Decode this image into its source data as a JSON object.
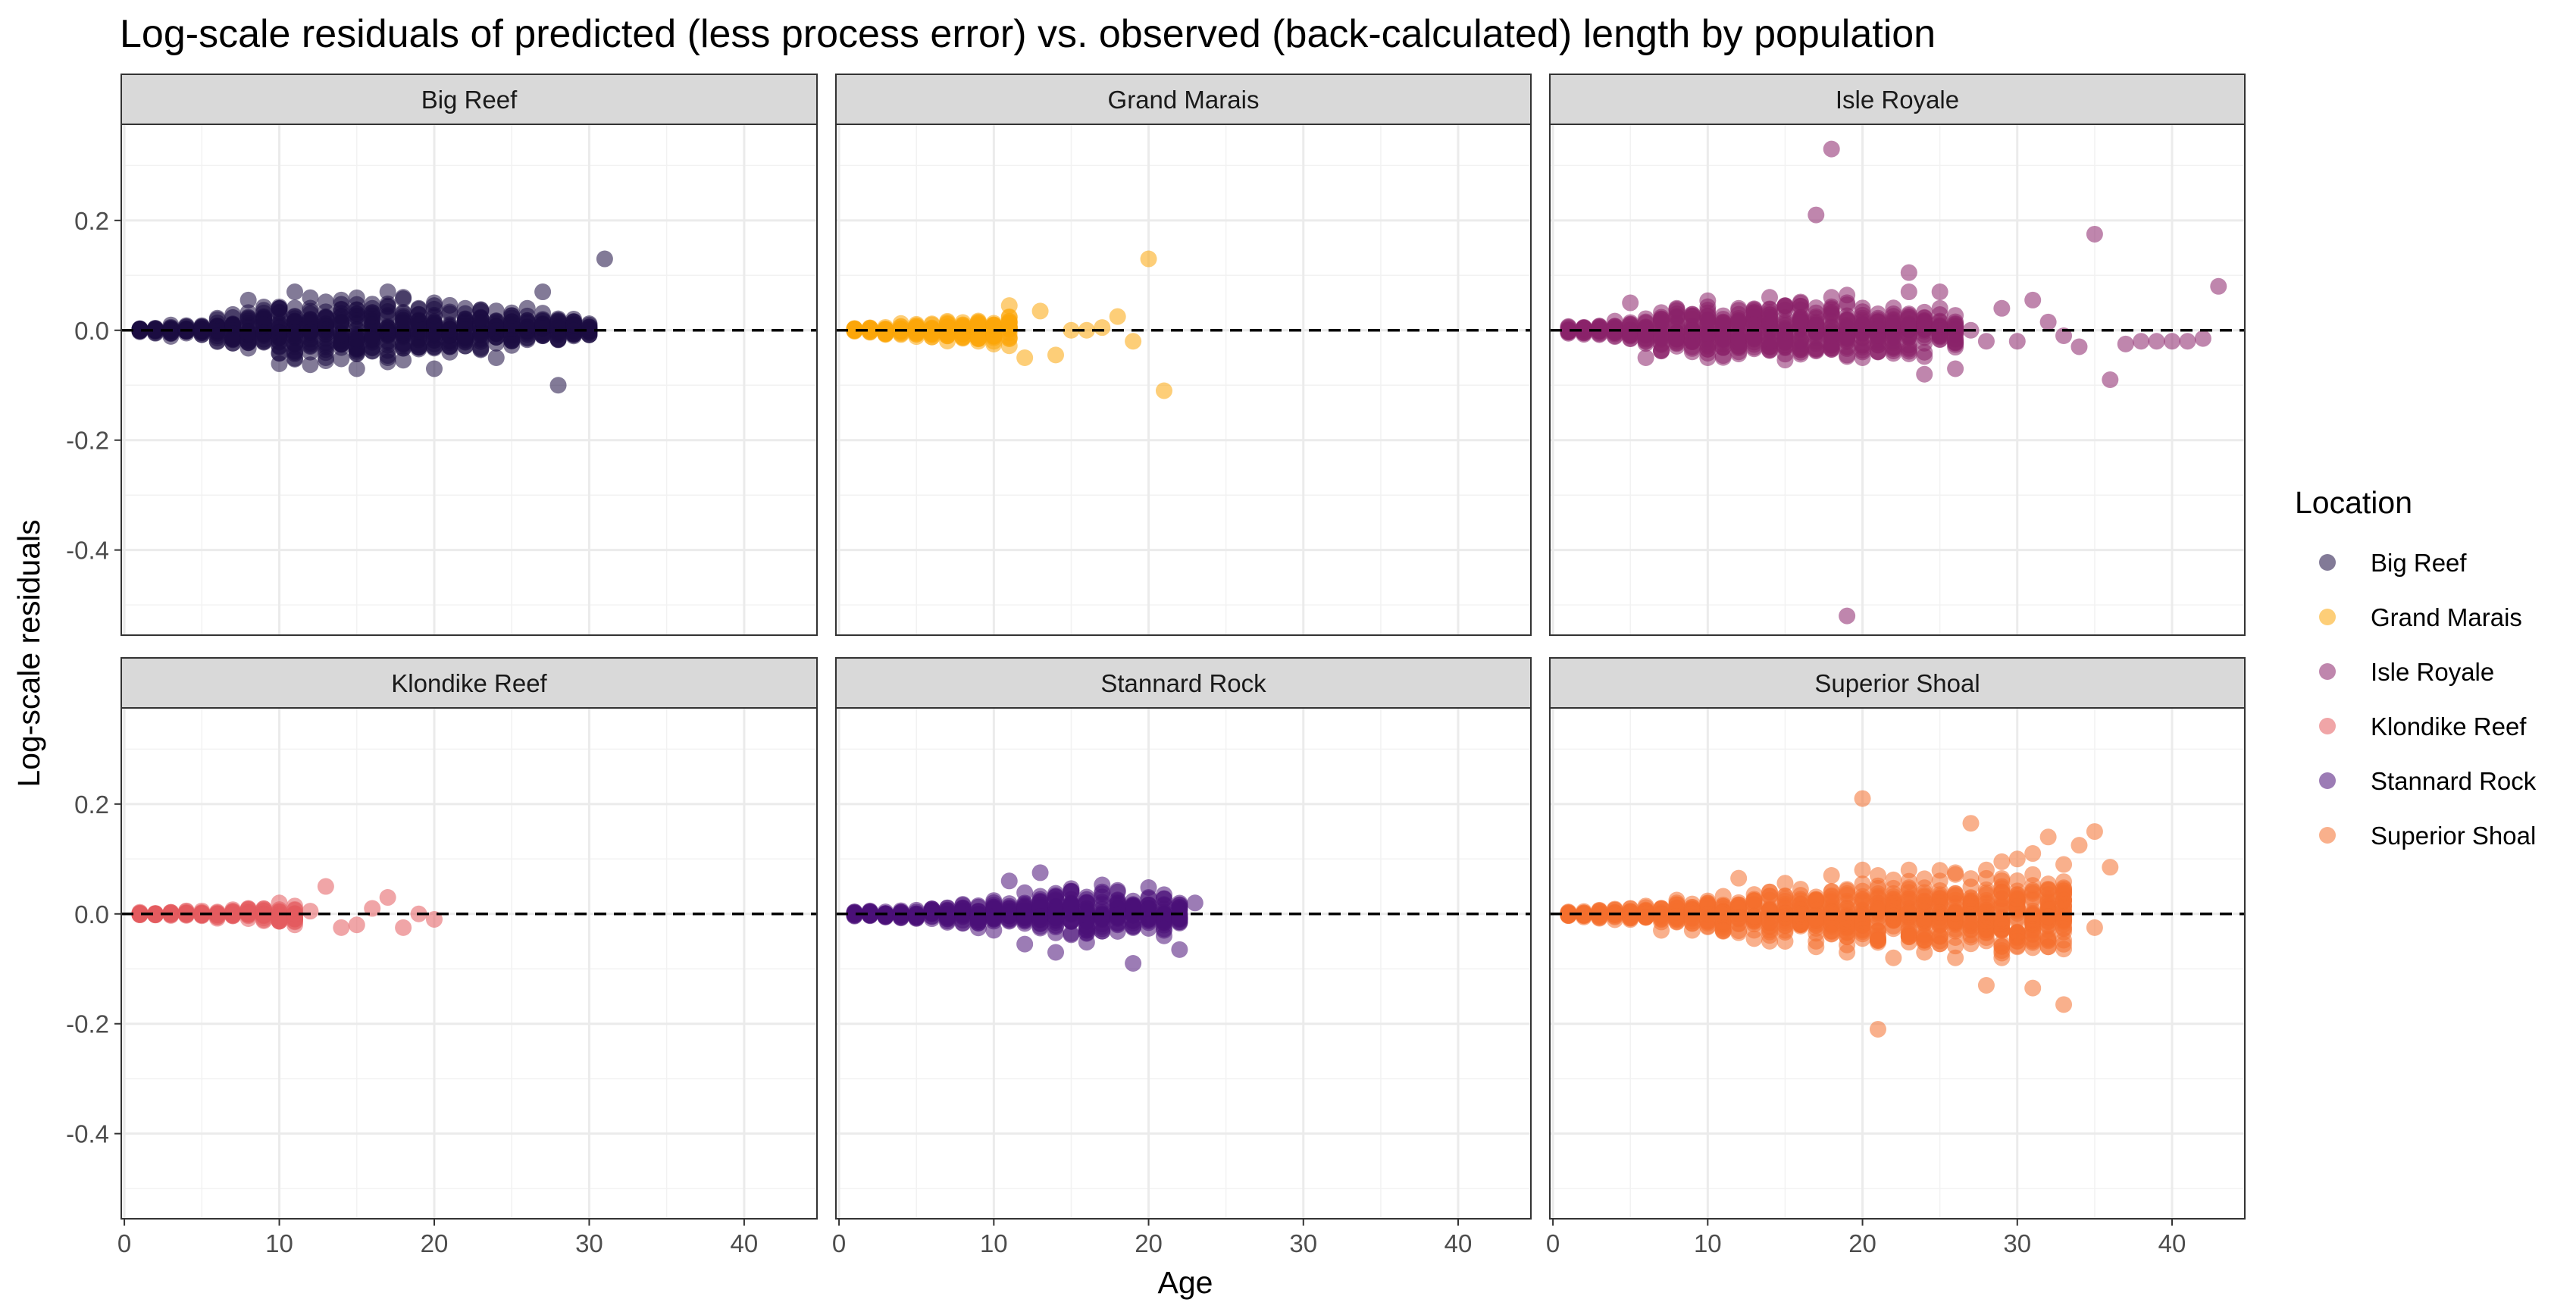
{
  "chart_data": {
    "type": "scatter",
    "title": "Log-scale residuals of predicted (less process error) vs. observed (back-calculated) length by population",
    "xlabel": "Age",
    "ylabel": "Log-scale residuals",
    "xlim": [
      -0.2,
      44.7
    ],
    "ylim": [
      -0.555,
      0.375
    ],
    "x_ticks": [
      0,
      10,
      20,
      30,
      40
    ],
    "x_tick_labels": [
      "0",
      "10",
      "20",
      "30",
      "40"
    ],
    "y_ticks": [
      -0.4,
      -0.2,
      0.0,
      0.2
    ],
    "y_tick_labels": [
      "-0.4",
      "-0.2",
      "0.0",
      "0.2"
    ],
    "reference_line": {
      "y": 0,
      "style": "dashed"
    },
    "grid": true,
    "legend": {
      "title": "Location",
      "position": "right",
      "entries": [
        "Big Reef",
        "Grand Marais",
        "Isle Royale",
        "Klondike Reef",
        "Stannard Rock",
        "Superior Shoal"
      ]
    },
    "panels": [
      {
        "name": "Big Reef",
        "color": "#1B0C41",
        "points": [
          [
            1,
            0
          ],
          [
            2,
            0
          ],
          [
            3,
            0
          ],
          [
            4,
            0
          ],
          [
            5,
            0
          ],
          [
            6,
            0
          ],
          [
            7,
            0.01
          ],
          [
            8,
            0.055
          ],
          [
            9,
            -0.02
          ],
          [
            10,
            0.04
          ],
          [
            11,
            0.07
          ],
          [
            11,
            -0.04
          ],
          [
            12,
            0.03
          ],
          [
            13,
            -0.05
          ],
          [
            14,
            0.055
          ],
          [
            15,
            -0.07
          ],
          [
            16,
            0.04
          ],
          [
            17,
            0.07
          ],
          [
            17,
            -0.05
          ],
          [
            18,
            0.06
          ],
          [
            19,
            0.04
          ],
          [
            20,
            0.05
          ],
          [
            20,
            -0.07
          ],
          [
            21,
            -0.04
          ],
          [
            22,
            0.04
          ],
          [
            23,
            0.02
          ],
          [
            24,
            -0.05
          ],
          [
            25,
            0.01
          ],
          [
            26,
            0.04
          ],
          [
            27,
            0.07
          ],
          [
            28,
            -0.1
          ],
          [
            29,
            0.01
          ],
          [
            30,
            0.005
          ],
          [
            31,
            0.13
          ]
        ],
        "band": {
          "x_min": 1,
          "x_max": 30,
          "spread": [
            [
              1,
              0.004
            ],
            [
              5,
              0.01
            ],
            [
              10,
              0.04
            ],
            [
              15,
              0.04
            ],
            [
              20,
              0.035
            ],
            [
              25,
              0.025
            ],
            [
              30,
              0.015
            ]
          ]
        }
      },
      {
        "name": "Grand Marais",
        "color": "#FCA50A",
        "points": [
          [
            1,
            0
          ],
          [
            2,
            0
          ],
          [
            3,
            0
          ],
          [
            4,
            0
          ],
          [
            5,
            0.005
          ],
          [
            6,
            0.01
          ],
          [
            7,
            -0.01
          ],
          [
            8,
            0.01
          ],
          [
            9,
            -0.02
          ],
          [
            10,
            -0.02
          ],
          [
            11,
            0.045
          ],
          [
            12,
            -0.05
          ],
          [
            13,
            0.035
          ],
          [
            14,
            -0.045
          ],
          [
            15,
            0
          ],
          [
            16,
            0
          ],
          [
            17,
            0.005
          ],
          [
            18,
            0.025
          ],
          [
            19,
            -0.02
          ],
          [
            20,
            0.13
          ],
          [
            21,
            -0.11
          ]
        ],
        "band": {
          "x_min": 1,
          "x_max": 11,
          "spread": [
            [
              1,
              0.003
            ],
            [
              5,
              0.01
            ],
            [
              10,
              0.02
            ],
            [
              11,
              0.02
            ]
          ]
        }
      },
      {
        "name": "Isle Royale",
        "color": "#8A226A",
        "points": [
          [
            1,
            0
          ],
          [
            2,
            0
          ],
          [
            3,
            0
          ],
          [
            4,
            0
          ],
          [
            5,
            0.05
          ],
          [
            6,
            -0.05
          ],
          [
            7,
            0.02
          ],
          [
            8,
            0.04
          ],
          [
            9,
            -0.03
          ],
          [
            10,
            -0.05
          ],
          [
            12,
            0.04
          ],
          [
            14,
            0.06
          ],
          [
            16,
            -0.04
          ],
          [
            17,
            0.21
          ],
          [
            18,
            0.33
          ],
          [
            18,
            0.06
          ],
          [
            19,
            -0.52
          ],
          [
            20,
            -0.05
          ],
          [
            21,
            0.03
          ],
          [
            22,
            -0.03
          ],
          [
            23,
            0.105
          ],
          [
            23,
            0.07
          ],
          [
            24,
            -0.08
          ],
          [
            24,
            -0.04
          ],
          [
            25,
            0.07
          ],
          [
            26,
            -0.07
          ],
          [
            27,
            0.0
          ],
          [
            28,
            -0.02
          ],
          [
            29,
            0.04
          ],
          [
            30,
            -0.02
          ],
          [
            31,
            0.055
          ],
          [
            32,
            0.015
          ],
          [
            33,
            -0.01
          ],
          [
            34,
            -0.03
          ],
          [
            35,
            0.175
          ],
          [
            36,
            -0.09
          ],
          [
            37,
            -0.025
          ],
          [
            38,
            -0.02
          ],
          [
            39,
            -0.02
          ],
          [
            40,
            -0.02
          ],
          [
            41,
            -0.02
          ],
          [
            42,
            -0.015
          ],
          [
            43,
            0.08
          ]
        ],
        "band": {
          "x_min": 1,
          "x_max": 26,
          "spread": [
            [
              1,
              0.005
            ],
            [
              5,
              0.015
            ],
            [
              10,
              0.04
            ],
            [
              15,
              0.045
            ],
            [
              20,
              0.04
            ],
            [
              24,
              0.03
            ],
            [
              26,
              0.02
            ]
          ]
        }
      },
      {
        "name": "Klondike Reef",
        "color": "#E35B5F",
        "points": [
          [
            1,
            0
          ],
          [
            2,
            0
          ],
          [
            3,
            0
          ],
          [
            4,
            0
          ],
          [
            5,
            0
          ],
          [
            6,
            0
          ],
          [
            7,
            0.005
          ],
          [
            8,
            0
          ],
          [
            9,
            0
          ],
          [
            10,
            0.02
          ],
          [
            11,
            -0.02
          ],
          [
            12,
            0.005
          ],
          [
            13,
            0.05
          ],
          [
            14,
            -0.025
          ],
          [
            15,
            -0.02
          ],
          [
            16,
            0.01
          ],
          [
            17,
            0.03
          ],
          [
            18,
            -0.025
          ],
          [
            19,
            0
          ],
          [
            20,
            -0.01
          ]
        ],
        "band": {
          "x_min": 1,
          "x_max": 11,
          "spread": [
            [
              1,
              0.002
            ],
            [
              6,
              0.006
            ],
            [
              11,
              0.012
            ]
          ]
        }
      },
      {
        "name": "Stannard Rock",
        "color": "#4A1079",
        "points": [
          [
            1,
            0
          ],
          [
            2,
            0
          ],
          [
            3,
            0
          ],
          [
            4,
            0
          ],
          [
            5,
            0
          ],
          [
            6,
            0
          ],
          [
            7,
            0.005
          ],
          [
            8,
            0.01
          ],
          [
            9,
            -0.01
          ],
          [
            10,
            0.01
          ],
          [
            11,
            0.06
          ],
          [
            12,
            -0.055
          ],
          [
            13,
            0.075
          ],
          [
            14,
            -0.07
          ],
          [
            15,
            0.02
          ],
          [
            16,
            -0.03
          ],
          [
            17,
            0.04
          ],
          [
            18,
            0.04
          ],
          [
            19,
            -0.09
          ],
          [
            20,
            0.03
          ],
          [
            21,
            0.035
          ],
          [
            21,
            -0.03
          ],
          [
            22,
            0.0
          ],
          [
            22,
            -0.065
          ],
          [
            23,
            0.02
          ]
        ],
        "band": {
          "x_min": 1,
          "x_max": 22,
          "spread": [
            [
              1,
              0.003
            ],
            [
              5,
              0.008
            ],
            [
              10,
              0.02
            ],
            [
              15,
              0.035
            ],
            [
              20,
              0.03
            ],
            [
              22,
              0.02
            ]
          ]
        }
      },
      {
        "name": "Superior Shoal",
        "color": "#F4702E",
        "points": [
          [
            1,
            0
          ],
          [
            2,
            0
          ],
          [
            3,
            0
          ],
          [
            4,
            0
          ],
          [
            5,
            0
          ],
          [
            6,
            0
          ],
          [
            7,
            -0.03
          ],
          [
            8,
            0.02
          ],
          [
            9,
            -0.03
          ],
          [
            10,
            0.02
          ],
          [
            11,
            -0.03
          ],
          [
            12,
            0.065
          ],
          [
            13,
            -0.045
          ],
          [
            14,
            0.04
          ],
          [
            15,
            -0.05
          ],
          [
            16,
            0.045
          ],
          [
            17,
            -0.06
          ],
          [
            18,
            0.07
          ],
          [
            19,
            -0.07
          ],
          [
            20,
            0.21
          ],
          [
            20,
            0.08
          ],
          [
            21,
            -0.21
          ],
          [
            21,
            0.07
          ],
          [
            22,
            -0.08
          ],
          [
            23,
            0.08
          ],
          [
            24,
            -0.07
          ],
          [
            25,
            0.06
          ],
          [
            26,
            0.075
          ],
          [
            26,
            -0.08
          ],
          [
            27,
            0.165
          ],
          [
            28,
            -0.13
          ],
          [
            28,
            0.08
          ],
          [
            29,
            0.095
          ],
          [
            29,
            -0.08
          ],
          [
            30,
            0.1
          ],
          [
            30,
            -0.06
          ],
          [
            31,
            0.11
          ],
          [
            31,
            -0.135
          ],
          [
            32,
            0.14
          ],
          [
            32,
            -0.06
          ],
          [
            33,
            -0.165
          ],
          [
            33,
            0.09
          ],
          [
            34,
            0.125
          ],
          [
            35,
            0.15
          ],
          [
            35,
            -0.025
          ],
          [
            36,
            0.085
          ]
        ],
        "band": {
          "x_min": 1,
          "x_max": 33,
          "spread": [
            [
              1,
              0.003
            ],
            [
              5,
              0.01
            ],
            [
              10,
              0.025
            ],
            [
              15,
              0.035
            ],
            [
              20,
              0.045
            ],
            [
              25,
              0.05
            ],
            [
              30,
              0.055
            ],
            [
              33,
              0.05
            ]
          ]
        }
      }
    ]
  }
}
